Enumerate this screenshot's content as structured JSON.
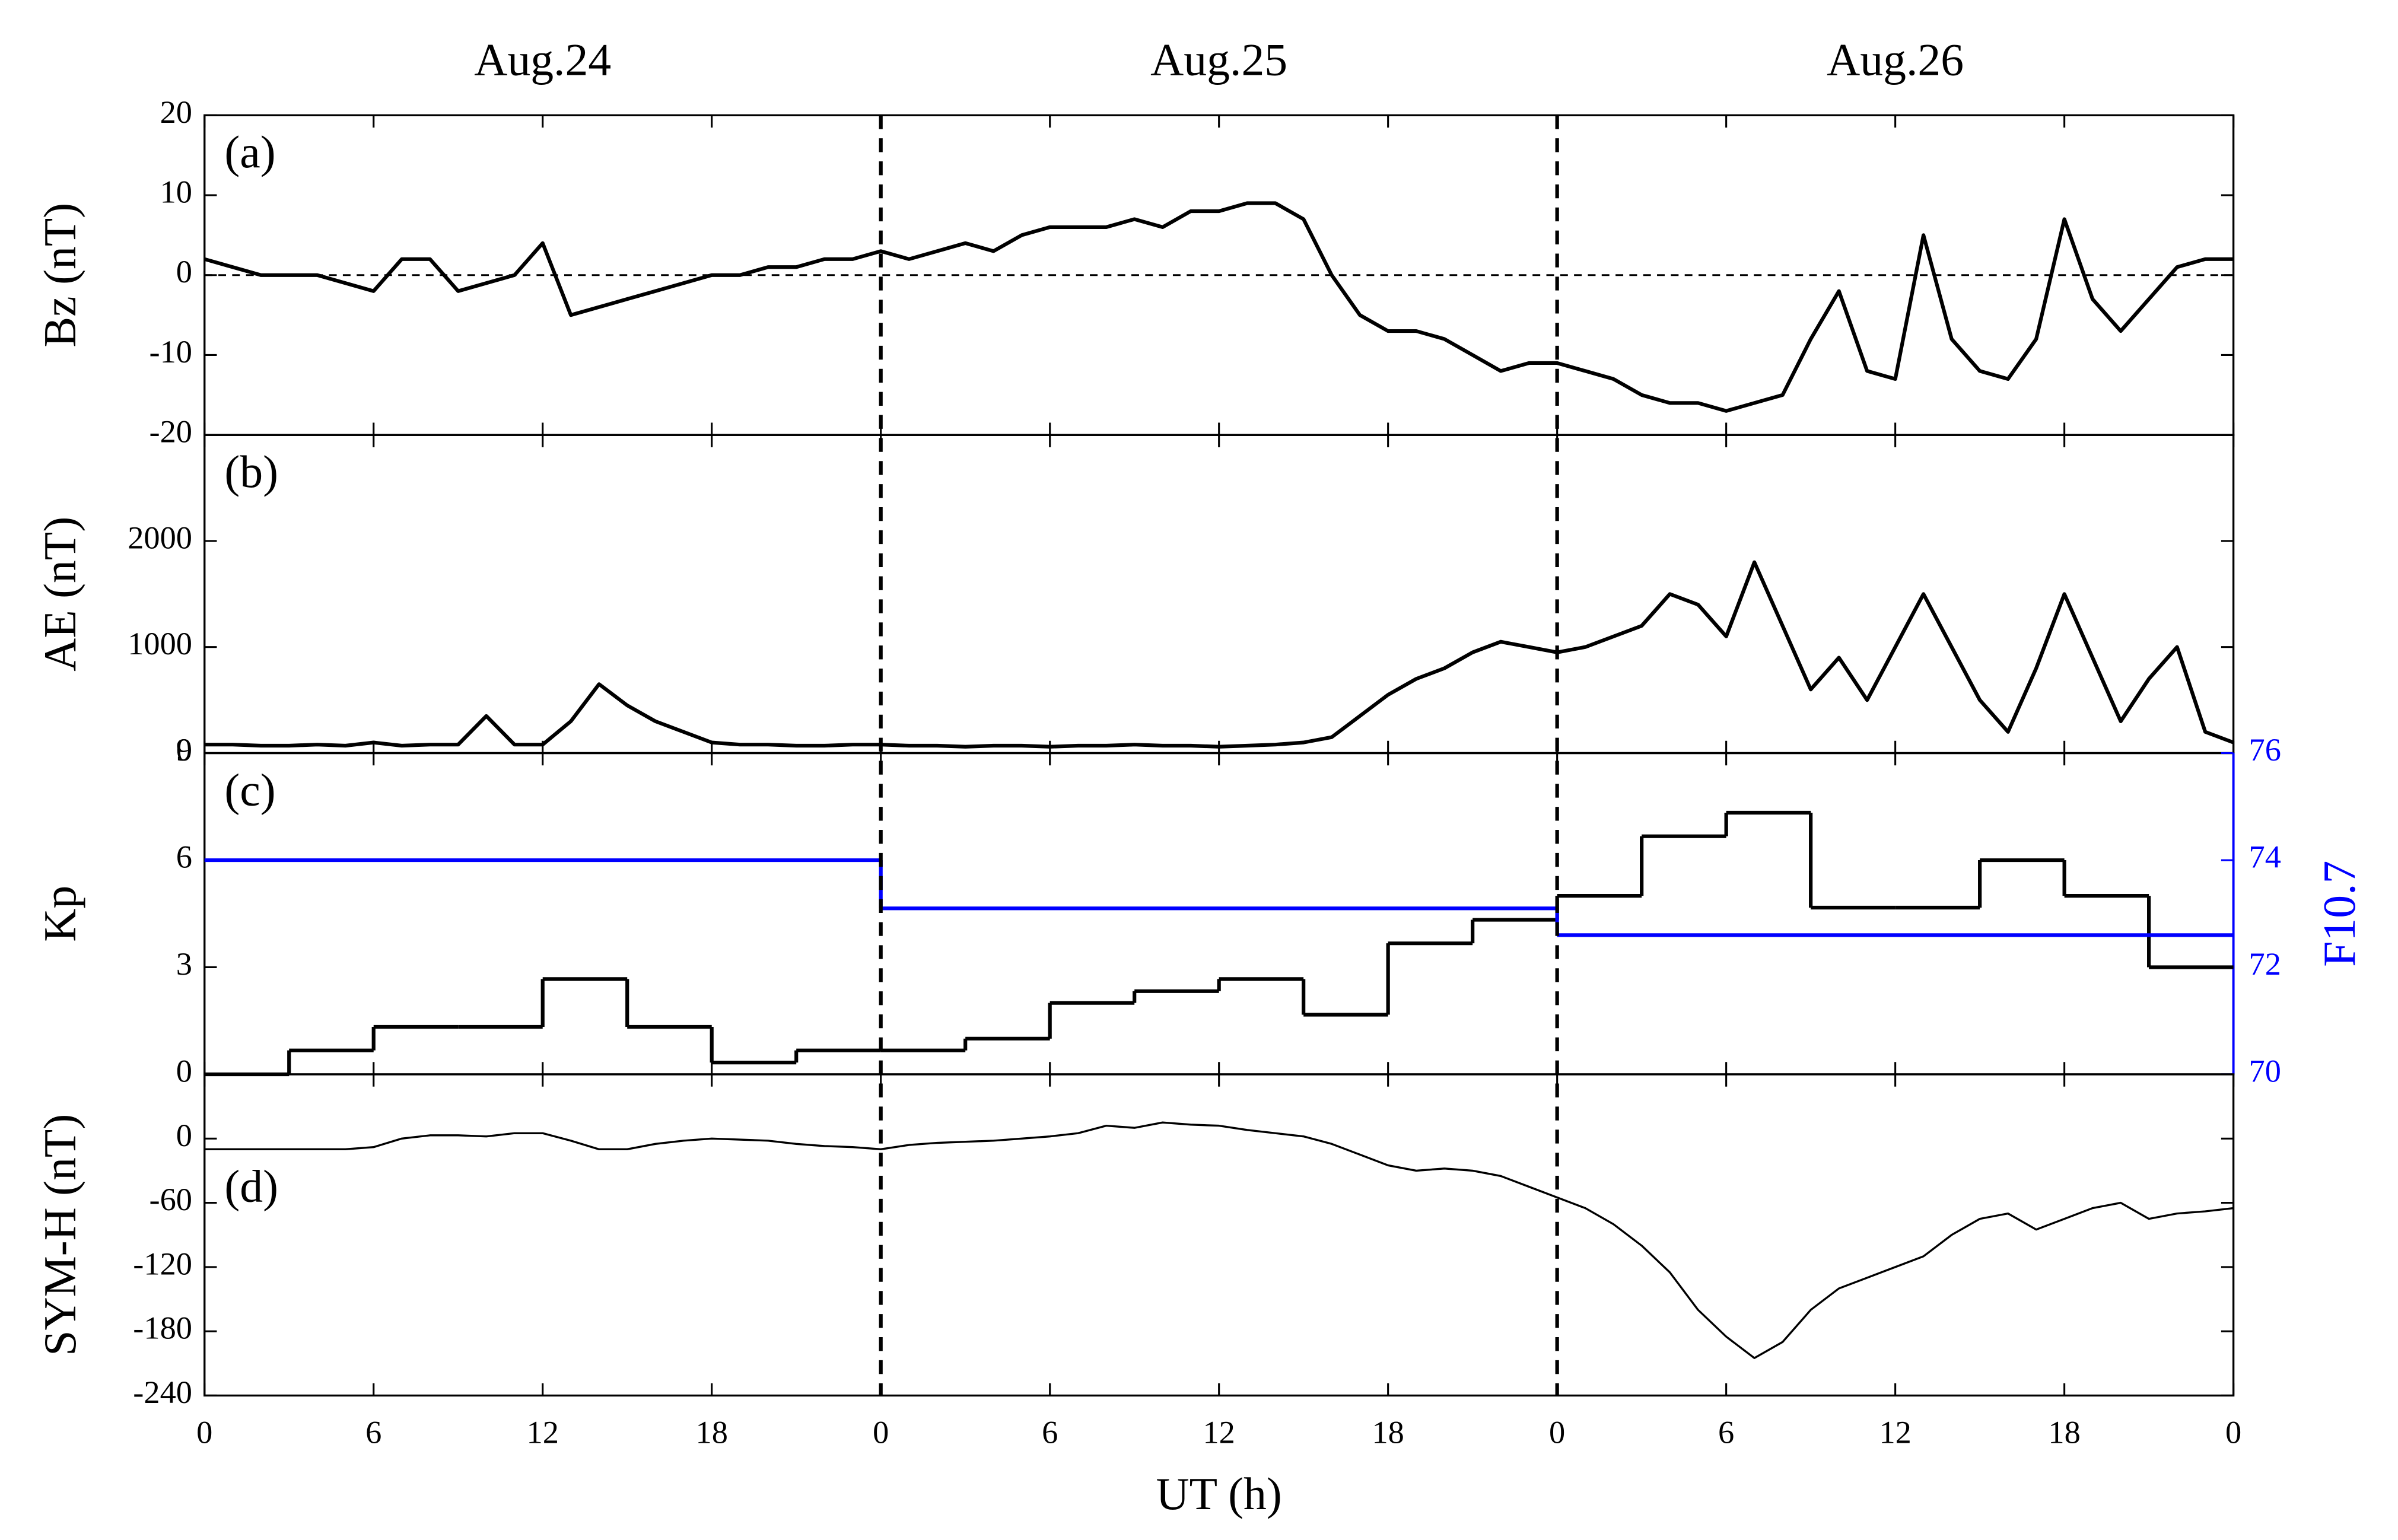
{
  "chart_data": [
    {
      "type": "line",
      "panel_label": "(a)",
      "ylabel": "Bz (nT)",
      "annotations": [
        "Aug.24",
        "Aug.25",
        "Aug.26"
      ],
      "hline": 0,
      "x": [
        0,
        1,
        2,
        3,
        4,
        5,
        6,
        7,
        8,
        9,
        10,
        11,
        12,
        13,
        14,
        15,
        16,
        17,
        18,
        19,
        20,
        21,
        22,
        23,
        24,
        25,
        26,
        27,
        28,
        29,
        30,
        31,
        32,
        33,
        34,
        35,
        36,
        37,
        38,
        39,
        40,
        41,
        42,
        43,
        44,
        45,
        46,
        47,
        48,
        49,
        50,
        51,
        52,
        53,
        54,
        55,
        56,
        57,
        58,
        59,
        60,
        61,
        62,
        63,
        64,
        65,
        66,
        67,
        68,
        69,
        70,
        71,
        72
      ],
      "values": [
        2,
        1,
        0,
        0,
        0,
        -1,
        -2,
        2,
        2,
        -2,
        -1,
        0,
        4,
        -5,
        -4,
        -3,
        -2,
        -1,
        0,
        0,
        1,
        1,
        2,
        2,
        3,
        2,
        3,
        4,
        3,
        5,
        6,
        6,
        6,
        7,
        6,
        8,
        8,
        9,
        9,
        7,
        0,
        -5,
        -7,
        -7,
        -8,
        -10,
        -12,
        -11,
        -11,
        -12,
        -13,
        -15,
        -16,
        -16,
        -17,
        -16,
        -15,
        -8,
        -2,
        -12,
        -13,
        5,
        -8,
        -12,
        -13,
        -8,
        7,
        -3,
        -7,
        -3,
        1,
        2,
        2
      ],
      "color": "#000000",
      "ylim": [
        -20,
        20
      ],
      "yticks": [
        -20,
        -10,
        0,
        10,
        20
      ]
    },
    {
      "type": "line",
      "panel_label": "(b)",
      "ylabel": "AE (nT)",
      "x": [
        0,
        1,
        2,
        3,
        4,
        5,
        6,
        7,
        8,
        9,
        10,
        11,
        12,
        13,
        14,
        15,
        16,
        17,
        18,
        19,
        20,
        21,
        22,
        23,
        24,
        25,
        26,
        27,
        28,
        29,
        30,
        31,
        32,
        33,
        34,
        35,
        36,
        37,
        38,
        39,
        40,
        41,
        42,
        43,
        44,
        45,
        46,
        47,
        48,
        49,
        50,
        51,
        52,
        53,
        54,
        55,
        56,
        57,
        58,
        59,
        60,
        61,
        62,
        63,
        64,
        65,
        66,
        67,
        68,
        69,
        70,
        71,
        72
      ],
      "values": [
        80,
        80,
        70,
        70,
        80,
        70,
        100,
        70,
        80,
        80,
        350,
        80,
        80,
        300,
        650,
        450,
        300,
        200,
        100,
        80,
        80,
        70,
        70,
        80,
        80,
        70,
        70,
        60,
        70,
        70,
        60,
        70,
        70,
        80,
        70,
        70,
        60,
        70,
        80,
        100,
        150,
        350,
        550,
        700,
        800,
        950,
        1050,
        1000,
        950,
        1000,
        1100,
        1200,
        1500,
        1400,
        1100,
        1800,
        1200,
        600,
        900,
        500,
        1000,
        1500,
        1000,
        500,
        200,
        800,
        1500,
        900,
        300,
        700,
        1000,
        200,
        100
      ],
      "color": "#000000",
      "ylim": [
        0,
        3000
      ],
      "yticks": [
        0,
        1000,
        2000
      ]
    },
    {
      "type": "step",
      "panel_label": "(c)",
      "ylabel": "Kp",
      "y2label": "F10.7",
      "y2color": "#0000ff",
      "ylim": [
        0,
        9
      ],
      "yticks": [
        0,
        3,
        6,
        9
      ],
      "y2lim": [
        70,
        76
      ],
      "y2ticks": [
        70,
        72,
        74,
        76
      ],
      "series": [
        {
          "color": "#000000",
          "x": [
            0,
            3,
            6,
            9,
            12,
            15,
            18,
            21,
            24,
            27,
            30,
            33,
            36,
            39,
            42,
            45,
            48,
            51,
            54,
            57,
            60,
            63,
            66,
            69
          ],
          "values": [
            0,
            0.67,
            1.33,
            1.33,
            2.67,
            1.33,
            0.33,
            0.67,
            0.67,
            1,
            2,
            2.33,
            2.67,
            1.67,
            3.67,
            4.33,
            5,
            6.67,
            7.33,
            4.67,
            4.67,
            6,
            5,
            3
          ]
        },
        {
          "color": "#0000ff",
          "axis": "y2",
          "x": [
            0,
            24,
            48
          ],
          "values": [
            74,
            73.1,
            72.6
          ]
        }
      ]
    },
    {
      "type": "line",
      "panel_label": "(d)",
      "ylabel": "SYM-H (nT)",
      "xlabel": "UT (h)",
      "vlines": [
        24,
        48
      ],
      "x": [
        0,
        1,
        2,
        3,
        4,
        5,
        6,
        7,
        8,
        9,
        10,
        11,
        12,
        13,
        14,
        15,
        16,
        17,
        18,
        19,
        20,
        21,
        22,
        23,
        24,
        25,
        26,
        27,
        28,
        29,
        30,
        31,
        32,
        33,
        34,
        35,
        36,
        37,
        38,
        39,
        40,
        41,
        42,
        43,
        44,
        45,
        46,
        47,
        48,
        49,
        50,
        51,
        52,
        53,
        54,
        55,
        56,
        57,
        58,
        59,
        60,
        61,
        62,
        63,
        64,
        65,
        66,
        67,
        68,
        69,
        70,
        71,
        72
      ],
      "values": [
        -10,
        -10,
        -10,
        -10,
        -10,
        -10,
        -8,
        0,
        3,
        3,
        2,
        5,
        5,
        -2,
        -10,
        -10,
        -5,
        -2,
        0,
        -1,
        -2,
        -5,
        -7,
        -8,
        -10,
        -6,
        -4,
        -3,
        -2,
        0,
        2,
        5,
        12,
        10,
        15,
        13,
        12,
        8,
        5,
        2,
        -5,
        -15,
        -25,
        -30,
        -28,
        -30,
        -35,
        -45,
        -55,
        -65,
        -80,
        -100,
        -125,
        -160,
        -185,
        -205,
        -190,
        -160,
        -140,
        -130,
        -120,
        -110,
        -90,
        -75,
        -70,
        -85,
        -75,
        -65,
        -60,
        -75,
        -70,
        -68,
        -65
      ],
      "color": "#000000",
      "ylim": [
        -240,
        60
      ],
      "yticks": [
        -240,
        -180,
        -120,
        -60,
        0
      ],
      "xlim": [
        0,
        72
      ],
      "xticks": [
        0,
        6,
        12,
        18,
        {
          "value": 24,
          "label": "0"
        },
        {
          "value": 30,
          "label": "6"
        },
        {
          "value": 36,
          "label": "12"
        },
        {
          "value": 42,
          "label": "18"
        },
        {
          "value": 48,
          "label": "0"
        },
        {
          "value": 54,
          "label": "6"
        },
        {
          "value": 60,
          "label": "12"
        },
        {
          "value": 66,
          "label": "18"
        },
        {
          "value": 72,
          "label": "0"
        }
      ]
    }
  ]
}
